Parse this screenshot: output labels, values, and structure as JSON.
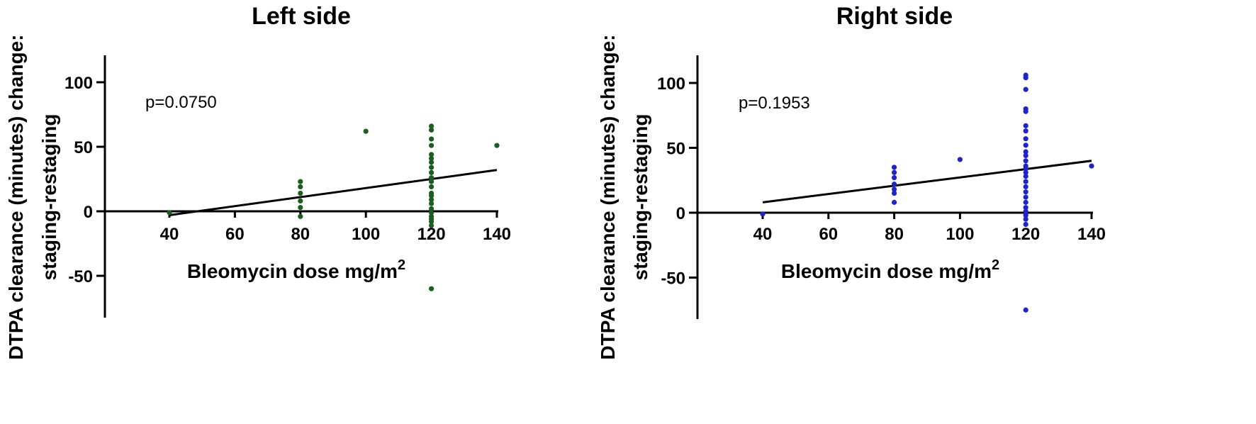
{
  "chart_data": [
    {
      "type": "scatter",
      "title": "Left side",
      "xlabel": "Bleomycin dose mg/m",
      "xlabel_sup": "2",
      "ylabel_lines": [
        "DTPA clearance (minutes) change:",
        "staging-restaging"
      ],
      "annotation": "p=0.0750",
      "xlim": [
        20,
        140
      ],
      "ylim": [
        -82,
        120
      ],
      "xticks": [
        40,
        60,
        80,
        100,
        120,
        140
      ],
      "yticks": [
        100,
        50,
        0,
        -50
      ],
      "color": "#1b5e20",
      "points": [
        [
          40,
          -1
        ],
        [
          80,
          23
        ],
        [
          80,
          19
        ],
        [
          80,
          14
        ],
        [
          80,
          8
        ],
        [
          80,
          3
        ],
        [
          80,
          -4
        ],
        [
          100,
          62
        ],
        [
          120,
          66
        ],
        [
          120,
          63
        ],
        [
          120,
          56
        ],
        [
          120,
          51
        ],
        [
          120,
          44
        ],
        [
          120,
          41
        ],
        [
          120,
          38
        ],
        [
          120,
          34
        ],
        [
          120,
          30
        ],
        [
          120,
          26
        ],
        [
          120,
          23
        ],
        [
          120,
          19
        ],
        [
          120,
          14
        ],
        [
          120,
          12
        ],
        [
          120,
          9
        ],
        [
          120,
          6
        ],
        [
          120,
          2
        ],
        [
          120,
          -1
        ],
        [
          120,
          -4
        ],
        [
          120,
          -6
        ],
        [
          120,
          -8
        ],
        [
          120,
          -11
        ],
        [
          120,
          -60
        ],
        [
          140,
          51
        ]
      ],
      "fit_line": {
        "x": [
          40,
          140
        ],
        "y": [
          -3,
          32
        ]
      }
    },
    {
      "type": "scatter",
      "title": "Right side",
      "xlabel": "Bleomycin dose mg/m",
      "xlabel_sup": "2",
      "ylabel_lines": [
        "DTPA clearance (minutes) change:",
        "staging-restaging"
      ],
      "annotation": "p=0.1953",
      "xlim": [
        20,
        140
      ],
      "ylim": [
        -82,
        122
      ],
      "xticks": [
        40,
        60,
        80,
        100,
        120,
        140
      ],
      "yticks": [
        100,
        50,
        0,
        -50
      ],
      "color": "#1e24c8",
      "points": [
        [
          40,
          -1
        ],
        [
          80,
          35
        ],
        [
          80,
          31
        ],
        [
          80,
          27
        ],
        [
          80,
          22
        ],
        [
          80,
          18
        ],
        [
          80,
          15
        ],
        [
          80,
          8
        ],
        [
          100,
          41
        ],
        [
          120,
          106
        ],
        [
          120,
          104
        ],
        [
          120,
          95
        ],
        [
          120,
          80
        ],
        [
          120,
          78
        ],
        [
          120,
          67
        ],
        [
          120,
          63
        ],
        [
          120,
          57
        ],
        [
          120,
          52
        ],
        [
          120,
          47
        ],
        [
          120,
          44
        ],
        [
          120,
          40
        ],
        [
          120,
          36
        ],
        [
          120,
          34
        ],
        [
          120,
          31
        ],
        [
          120,
          28
        ],
        [
          120,
          24
        ],
        [
          120,
          20
        ],
        [
          120,
          16
        ],
        [
          120,
          12
        ],
        [
          120,
          8
        ],
        [
          120,
          4
        ],
        [
          120,
          1
        ],
        [
          120,
          -2
        ],
        [
          120,
          -5
        ],
        [
          120,
          -9
        ],
        [
          120,
          -75
        ],
        [
          140,
          36
        ]
      ],
      "fit_line": {
        "x": [
          40,
          140
        ],
        "y": [
          8,
          40
        ]
      }
    }
  ]
}
